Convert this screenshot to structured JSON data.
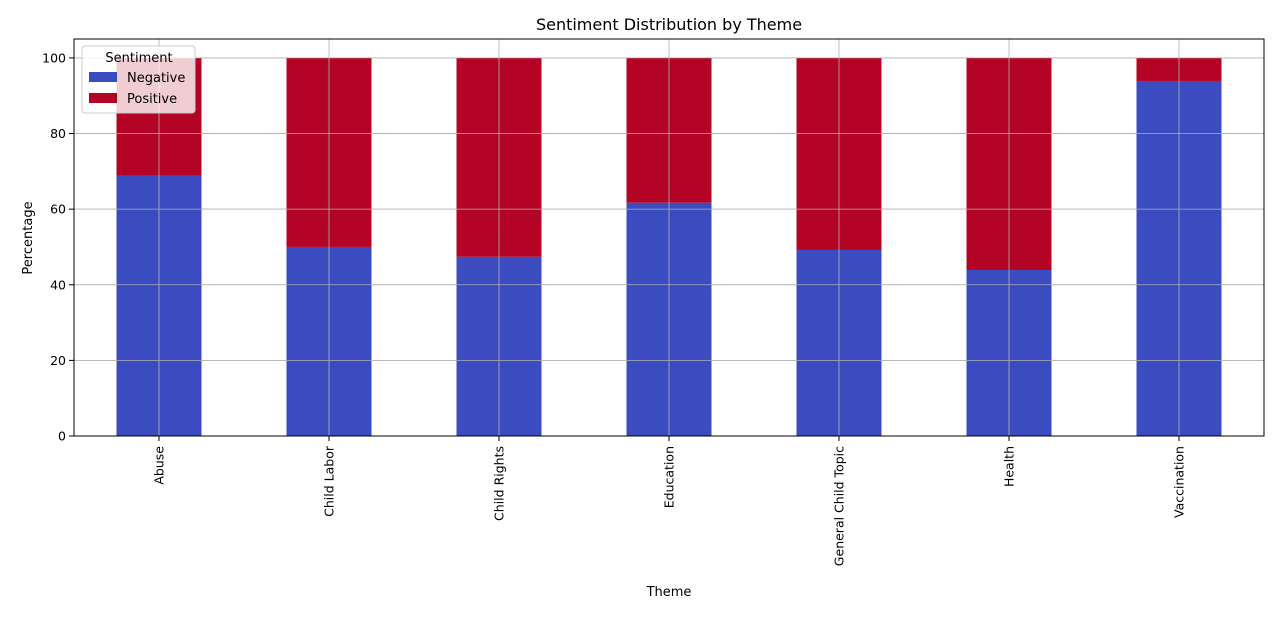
{
  "chart_data": {
    "type": "bar",
    "stacked": true,
    "title": "Sentiment Distribution by Theme",
    "xlabel": "Theme",
    "ylabel": "Percentage",
    "ylim": [
      0,
      105
    ],
    "yticks": [
      0,
      20,
      40,
      60,
      80,
      100
    ],
    "grid": true,
    "categories": [
      "Abuse",
      "Child Labor",
      "Child Rights",
      "Education",
      "General Child Topic",
      "Health",
      "Vaccination"
    ],
    "series": [
      {
        "name": "Negative",
        "color": "#3b4cc0",
        "values": [
          68.8,
          50.0,
          47.4,
          61.7,
          49.2,
          43.9,
          93.9
        ]
      },
      {
        "name": "Positive",
        "color": "#b40426",
        "values": [
          31.2,
          50.0,
          52.6,
          38.3,
          50.8,
          56.1,
          6.1
        ]
      }
    ],
    "legend": {
      "title": "Sentiment",
      "position": "top-left"
    }
  }
}
